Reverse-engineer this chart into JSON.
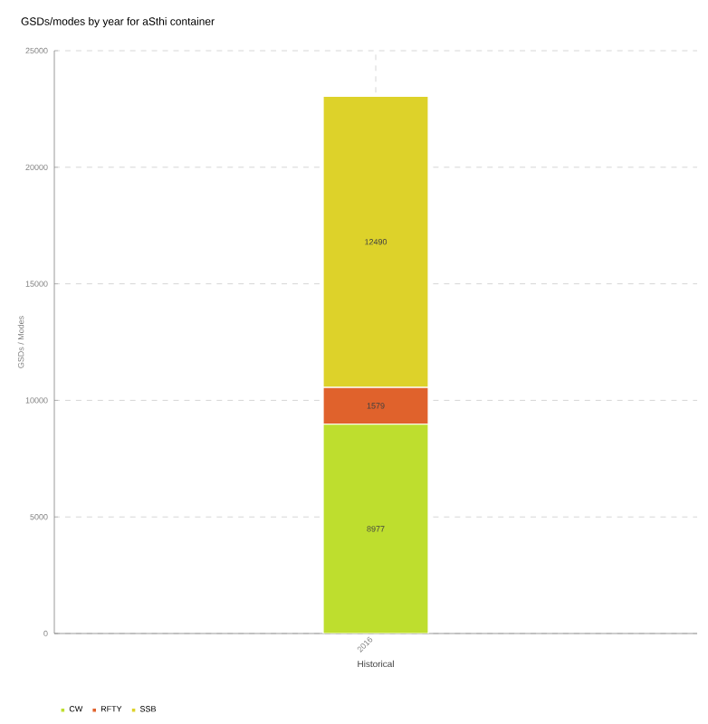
{
  "chart_data": {
    "type": "bar",
    "stacked": true,
    "title": "GSDs/modes by year for aSthi container",
    "xlabel": "Historical",
    "ylabel": "GSDs / Modes",
    "categories": [
      "2016"
    ],
    "series": [
      {
        "name": "CW",
        "color": "#bede2e",
        "values": [
          8977
        ]
      },
      {
        "name": "RFTY",
        "color": "#e0622c",
        "values": [
          1579
        ]
      },
      {
        "name": "SSB",
        "color": "#ddd22a",
        "values": [
          12490
        ]
      }
    ],
    "ylim": [
      0,
      25000
    ],
    "yticks": [
      0,
      5000,
      10000,
      15000,
      20000,
      25000
    ],
    "grid": true,
    "legend": "bottom left",
    "data_labels": true
  }
}
